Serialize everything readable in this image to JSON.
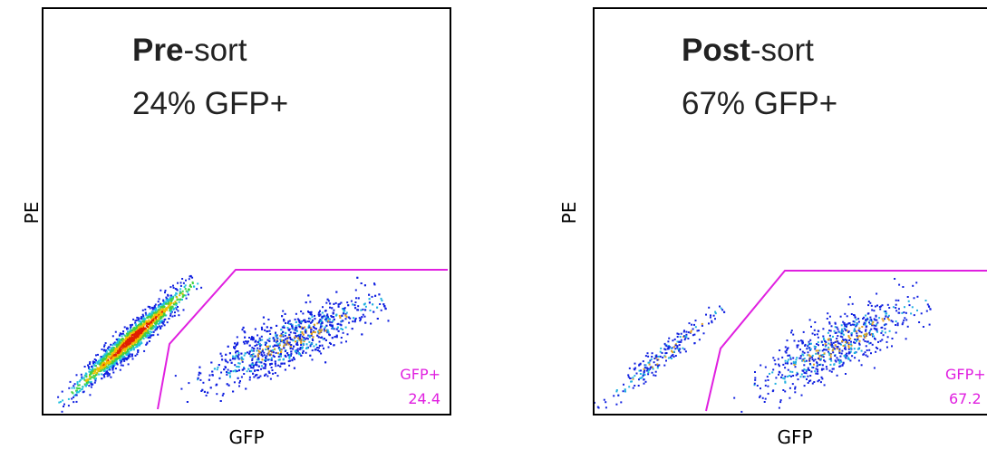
{
  "panels": [
    {
      "title_bold": "Pre",
      "title_rest": "-sort",
      "subtitle": "24% GFP+",
      "x_label": "GFP",
      "y_label": "PE",
      "gate_label": "GFP+",
      "gate_value": 24.4
    },
    {
      "title_bold": "Post",
      "title_rest": "-sort",
      "subtitle": "67% GFP+",
      "x_label": "GFP",
      "y_label": "PE",
      "gate_label": "GFP+",
      "gate_value": 67.2
    }
  ]
}
